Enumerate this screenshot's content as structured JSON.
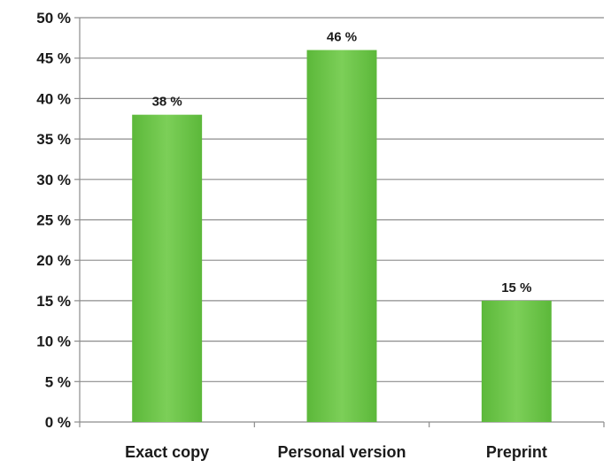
{
  "chart_data": {
    "type": "bar",
    "title": "",
    "xlabel": "",
    "ylabel": "",
    "categories": [
      "Exact copy",
      "Personal version",
      "Preprint"
    ],
    "values": [
      38,
      46,
      15
    ],
    "data_labels": [
      "38 %",
      "46 %",
      "15 %"
    ],
    "ylim": [
      0,
      50
    ],
    "yticks": [
      0,
      5,
      10,
      15,
      20,
      25,
      30,
      35,
      40,
      45,
      50
    ],
    "ytick_labels": [
      "0 %",
      "5 %",
      "10 %",
      "15 %",
      "20 %",
      "25 %",
      "30 %",
      "35 %",
      "40 %",
      "45 %",
      "50 %"
    ],
    "grid": true,
    "legend": "none",
    "colors": {
      "bar": "#5cb83a",
      "bar_light": "#7ccf58",
      "grid": "#8c8c8c",
      "axis": "#8c8c8c"
    }
  }
}
